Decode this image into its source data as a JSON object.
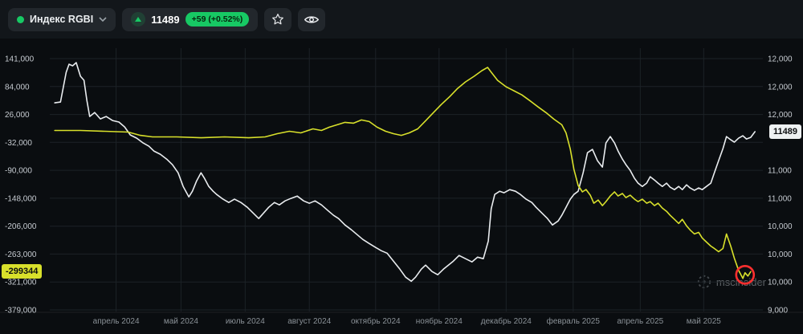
{
  "header": {
    "instrument": {
      "name": "Индекс RGBI"
    },
    "quote": {
      "value": "11489",
      "change": "+59 (+0.52%)"
    }
  },
  "watermark": {
    "text": "mscinsider"
  },
  "colors": {
    "green": "#17c964",
    "yellow": "#d8e02b",
    "white_line": "#e9ecef",
    "red_annotation": "#ff2f2f",
    "right_badge_bg": "#eef1f2"
  },
  "chart_data": {
    "type": "line",
    "title": "Индекс RGBI",
    "grid": true,
    "left_badge": "-299344",
    "right_badge": "11489",
    "left_axis": {
      "min": -381900,
      "max": 162600,
      "ticks": [
        "141,000",
        "84,000",
        "26,000",
        "-32,000",
        "-90,000",
        "-148,000",
        "-206,000",
        "-263,000",
        "-321,000",
        "-379,000"
      ]
    },
    "right_axis": {
      "min": 8880,
      "max": 12700,
      "ticks": [
        "12,000",
        "12,000",
        "12,000",
        "",
        "11,000",
        "11,000",
        "10,000",
        "10,000",
        "10,000",
        "9,000"
      ]
    },
    "x_labels": [
      {
        "label": "апрель 2024",
        "fx": 0.093
      },
      {
        "label": "май 2024",
        "fx": 0.184
      },
      {
        "label": "июль 2024",
        "fx": 0.274
      },
      {
        "label": "август 2024",
        "fx": 0.364
      },
      {
        "label": "октябрь 2024",
        "fx": 0.457
      },
      {
        "label": "ноябрь 2024",
        "fx": 0.546
      },
      {
        "label": "декабрь 2024",
        "fx": 0.64
      },
      {
        "label": "февраль 2025",
        "fx": 0.734
      },
      {
        "label": "апрель 2025",
        "fx": 0.828
      },
      {
        "label": "май 2025",
        "fx": 0.917
      }
    ],
    "series": [
      {
        "name": "white-line",
        "axis": "right_axis",
        "color": "#e9ecef",
        "last_value": "11489",
        "points": [
          [
            0.007,
            11907
          ],
          [
            0.015,
            11919
          ],
          [
            0.023,
            12350
          ],
          [
            0.027,
            12467
          ],
          [
            0.032,
            12444
          ],
          [
            0.037,
            12490
          ],
          [
            0.043,
            12292
          ],
          [
            0.048,
            12234
          ],
          [
            0.052,
            11942
          ],
          [
            0.056,
            11709
          ],
          [
            0.063,
            11767
          ],
          [
            0.071,
            11674
          ],
          [
            0.079,
            11709
          ],
          [
            0.088,
            11651
          ],
          [
            0.097,
            11628
          ],
          [
            0.105,
            11558
          ],
          [
            0.113,
            11441
          ],
          [
            0.122,
            11394
          ],
          [
            0.131,
            11324
          ],
          [
            0.139,
            11278
          ],
          [
            0.146,
            11208
          ],
          [
            0.155,
            11161
          ],
          [
            0.164,
            11091
          ],
          [
            0.172,
            11010
          ],
          [
            0.18,
            10893
          ],
          [
            0.187,
            10695
          ],
          [
            0.195,
            10543
          ],
          [
            0.2,
            10625
          ],
          [
            0.206,
            10776
          ],
          [
            0.212,
            10893
          ],
          [
            0.217,
            10811
          ],
          [
            0.223,
            10695
          ],
          [
            0.229,
            10625
          ],
          [
            0.234,
            10578
          ],
          [
            0.243,
            10509
          ],
          [
            0.251,
            10462
          ],
          [
            0.259,
            10509
          ],
          [
            0.268,
            10462
          ],
          [
            0.277,
            10392
          ],
          [
            0.285,
            10310
          ],
          [
            0.293,
            10229
          ],
          [
            0.3,
            10310
          ],
          [
            0.307,
            10392
          ],
          [
            0.315,
            10462
          ],
          [
            0.322,
            10427
          ],
          [
            0.33,
            10485
          ],
          [
            0.338,
            10520
          ],
          [
            0.347,
            10555
          ],
          [
            0.356,
            10485
          ],
          [
            0.364,
            10450
          ],
          [
            0.372,
            10485
          ],
          [
            0.381,
            10427
          ],
          [
            0.39,
            10345
          ],
          [
            0.398,
            10275
          ],
          [
            0.405,
            10229
          ],
          [
            0.414,
            10135
          ],
          [
            0.423,
            10066
          ],
          [
            0.431,
            9996
          ],
          [
            0.439,
            9926
          ],
          [
            0.448,
            9867
          ],
          [
            0.457,
            9809
          ],
          [
            0.465,
            9762
          ],
          [
            0.473,
            9727
          ],
          [
            0.482,
            9611
          ],
          [
            0.491,
            9494
          ],
          [
            0.499,
            9378
          ],
          [
            0.507,
            9319
          ],
          [
            0.513,
            9378
          ],
          [
            0.521,
            9494
          ],
          [
            0.527,
            9553
          ],
          [
            0.536,
            9460
          ],
          [
            0.544,
            9413
          ],
          [
            0.552,
            9494
          ],
          [
            0.559,
            9553
          ],
          [
            0.566,
            9611
          ],
          [
            0.574,
            9693
          ],
          [
            0.583,
            9646
          ],
          [
            0.592,
            9600
          ],
          [
            0.6,
            9669
          ],
          [
            0.608,
            9646
          ],
          [
            0.615,
            9902
          ],
          [
            0.619,
            10369
          ],
          [
            0.624,
            10578
          ],
          [
            0.631,
            10625
          ],
          [
            0.637,
            10602
          ],
          [
            0.645,
            10648
          ],
          [
            0.653,
            10625
          ],
          [
            0.66,
            10578
          ],
          [
            0.668,
            10509
          ],
          [
            0.676,
            10462
          ],
          [
            0.682,
            10392
          ],
          [
            0.69,
            10310
          ],
          [
            0.698,
            10229
          ],
          [
            0.705,
            10135
          ],
          [
            0.713,
            10194
          ],
          [
            0.718,
            10275
          ],
          [
            0.724,
            10392
          ],
          [
            0.73,
            10509
          ],
          [
            0.735,
            10578
          ],
          [
            0.741,
            10625
          ],
          [
            0.748,
            10893
          ],
          [
            0.754,
            11184
          ],
          [
            0.761,
            11231
          ],
          [
            0.768,
            11068
          ],
          [
            0.775,
            10975
          ],
          [
            0.78,
            11324
          ],
          [
            0.786,
            11418
          ],
          [
            0.792,
            11324
          ],
          [
            0.797,
            11208
          ],
          [
            0.803,
            11091
          ],
          [
            0.808,
            11010
          ],
          [
            0.814,
            10928
          ],
          [
            0.82,
            10811
          ],
          [
            0.825,
            10742
          ],
          [
            0.831,
            10695
          ],
          [
            0.837,
            10742
          ],
          [
            0.842,
            10835
          ],
          [
            0.848,
            10788
          ],
          [
            0.853,
            10742
          ],
          [
            0.859,
            10695
          ],
          [
            0.865,
            10742
          ],
          [
            0.87,
            10683
          ],
          [
            0.876,
            10648
          ],
          [
            0.882,
            10695
          ],
          [
            0.887,
            10648
          ],
          [
            0.893,
            10718
          ],
          [
            0.898,
            10672
          ],
          [
            0.904,
            10637
          ],
          [
            0.91,
            10672
          ],
          [
            0.915,
            10648
          ],
          [
            0.921,
            10695
          ],
          [
            0.927,
            10742
          ],
          [
            0.932,
            10893
          ],
          [
            0.938,
            11068
          ],
          [
            0.944,
            11243
          ],
          [
            0.949,
            11418
          ],
          [
            0.955,
            11371
          ],
          [
            0.96,
            11336
          ],
          [
            0.966,
            11394
          ],
          [
            0.972,
            11429
          ],
          [
            0.977,
            11383
          ],
          [
            0.983,
            11406
          ],
          [
            0.989,
            11489
          ]
        ]
      },
      {
        "name": "yellow-line",
        "axis": "left_axis",
        "color": "#d8e02b",
        "last_value": "-299344",
        "points": [
          [
            0.007,
            -7500
          ],
          [
            0.043,
            -7500
          ],
          [
            0.077,
            -9200
          ],
          [
            0.11,
            -10900
          ],
          [
            0.127,
            -17600
          ],
          [
            0.144,
            -20900
          ],
          [
            0.178,
            -20900
          ],
          [
            0.212,
            -22600
          ],
          [
            0.245,
            -20900
          ],
          [
            0.279,
            -22600
          ],
          [
            0.302,
            -20900
          ],
          [
            0.319,
            -14200
          ],
          [
            0.336,
            -9200
          ],
          [
            0.352,
            -12500
          ],
          [
            0.369,
            -4200
          ],
          [
            0.381,
            -7500
          ],
          [
            0.392,
            -800
          ],
          [
            0.403,
            4200
          ],
          [
            0.414,
            9200
          ],
          [
            0.426,
            7500
          ],
          [
            0.437,
            14200
          ],
          [
            0.448,
            10900
          ],
          [
            0.459,
            -800
          ],
          [
            0.471,
            -9200
          ],
          [
            0.482,
            -14200
          ],
          [
            0.493,
            -17600
          ],
          [
            0.504,
            -12500
          ],
          [
            0.516,
            -4200
          ],
          [
            0.527,
            12500
          ],
          [
            0.538,
            29300
          ],
          [
            0.549,
            46000
          ],
          [
            0.561,
            62700
          ],
          [
            0.572,
            79400
          ],
          [
            0.583,
            92800
          ],
          [
            0.595,
            104500
          ],
          [
            0.606,
            116200
          ],
          [
            0.614,
            122900
          ],
          [
            0.619,
            112900
          ],
          [
            0.628,
            96100
          ],
          [
            0.64,
            82800
          ],
          [
            0.651,
            74400
          ],
          [
            0.662,
            66000
          ],
          [
            0.673,
            54300
          ],
          [
            0.685,
            41000
          ],
          [
            0.696,
            29300
          ],
          [
            0.707,
            15900
          ],
          [
            0.718,
            4200
          ],
          [
            0.724,
            -12500
          ],
          [
            0.73,
            -46000
          ],
          [
            0.735,
            -87800
          ],
          [
            0.741,
            -121200
          ],
          [
            0.747,
            -134600
          ],
          [
            0.752,
            -129600
          ],
          [
            0.758,
            -141300
          ],
          [
            0.763,
            -158000
          ],
          [
            0.769,
            -151300
          ],
          [
            0.775,
            -163000
          ],
          [
            0.78,
            -154700
          ],
          [
            0.786,
            -143000
          ],
          [
            0.792,
            -134600
          ],
          [
            0.797,
            -143000
          ],
          [
            0.803,
            -137900
          ],
          [
            0.808,
            -146300
          ],
          [
            0.814,
            -141300
          ],
          [
            0.82,
            -149600
          ],
          [
            0.825,
            -154700
          ],
          [
            0.831,
            -149600
          ],
          [
            0.837,
            -158000
          ],
          [
            0.842,
            -154700
          ],
          [
            0.848,
            -163000
          ],
          [
            0.853,
            -158000
          ],
          [
            0.859,
            -168000
          ],
          [
            0.865,
            -174700
          ],
          [
            0.87,
            -183100
          ],
          [
            0.876,
            -191400
          ],
          [
            0.882,
            -199800
          ],
          [
            0.887,
            -191400
          ],
          [
            0.893,
            -204800
          ],
          [
            0.898,
            -213200
          ],
          [
            0.904,
            -221500
          ],
          [
            0.91,
            -218200
          ],
          [
            0.915,
            -229900
          ],
          [
            0.921,
            -238300
          ],
          [
            0.927,
            -246600
          ],
          [
            0.932,
            -251600
          ],
          [
            0.938,
            -258300
          ],
          [
            0.944,
            -251600
          ],
          [
            0.949,
            -221500
          ],
          [
            0.955,
            -246600
          ],
          [
            0.96,
            -271700
          ],
          [
            0.966,
            -296800
          ],
          [
            0.972,
            -313500
          ],
          [
            0.975,
            -301800
          ],
          [
            0.979,
            -308500
          ],
          [
            0.983,
            -299344
          ]
        ]
      }
    ],
    "annotation": {
      "axis": "left_axis",
      "fx": 0.975,
      "value": -306000,
      "radius": 11,
      "color": "#ff2f2f"
    }
  }
}
